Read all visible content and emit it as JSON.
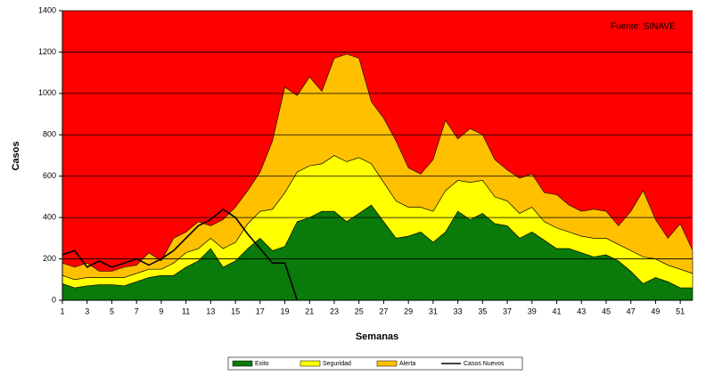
{
  "chart_data": {
    "type": "stacked_area_line",
    "ylabel": "Casos",
    "xlabel": "Semanas",
    "annotation": "Fuente: SINAVE",
    "plot_background": "#ff0000",
    "x": [
      1,
      2,
      3,
      4,
      5,
      6,
      7,
      8,
      9,
      10,
      11,
      12,
      13,
      14,
      15,
      16,
      17,
      18,
      19,
      20,
      21,
      22,
      23,
      24,
      25,
      26,
      27,
      28,
      29,
      30,
      31,
      32,
      33,
      34,
      35,
      36,
      37,
      38,
      39,
      40,
      41,
      42,
      43,
      44,
      45,
      46,
      47,
      48,
      49,
      50,
      51,
      52
    ],
    "xlim": [
      1,
      52
    ],
    "xticks": [
      1,
      3,
      5,
      7,
      9,
      11,
      13,
      15,
      17,
      19,
      21,
      23,
      25,
      27,
      29,
      31,
      33,
      35,
      37,
      39,
      41,
      43,
      45,
      47,
      49,
      51
    ],
    "ylim": [
      0,
      1400
    ],
    "yticks": [
      0,
      200,
      400,
      600,
      800,
      1000,
      1200,
      1400
    ],
    "grid": true,
    "series": [
      {
        "name": "Exito",
        "color": "#0a7a0a",
        "kind": "area",
        "values": [
          80,
          60,
          70,
          75,
          75,
          70,
          90,
          110,
          120,
          120,
          160,
          190,
          250,
          160,
          190,
          250,
          300,
          240,
          260,
          380,
          400,
          430,
          430,
          380,
          420,
          460,
          380,
          300,
          310,
          330,
          280,
          330,
          430,
          390,
          420,
          370,
          360,
          300,
          330,
          290,
          250,
          250,
          230,
          210,
          220,
          190,
          140,
          80,
          110,
          90,
          60,
          60
        ]
      },
      {
        "name": "Seguridad",
        "color": "#ffff00",
        "kind": "area",
        "values": [
          40,
          40,
          40,
          35,
          35,
          40,
          40,
          40,
          30,
          60,
          70,
          60,
          50,
          90,
          90,
          120,
          130,
          200,
          260,
          240,
          250,
          230,
          270,
          290,
          270,
          200,
          190,
          180,
          140,
          120,
          150,
          200,
          150,
          180,
          160,
          130,
          120,
          120,
          120,
          90,
          100,
          80,
          80,
          90,
          80,
          80,
          100,
          130,
          90,
          80,
          90,
          70
        ]
      },
      {
        "name": "Alerta",
        "color": "#ffc000",
        "kind": "area",
        "values": [
          60,
          60,
          70,
          30,
          30,
          50,
          40,
          80,
          40,
          120,
          100,
          130,
          60,
          140,
          170,
          160,
          190,
          330,
          510,
          370,
          430,
          350,
          470,
          520,
          480,
          300,
          310,
          290,
          190,
          160,
          250,
          340,
          200,
          260,
          220,
          180,
          150,
          170,
          160,
          140,
          160,
          130,
          120,
          140,
          130,
          90,
          190,
          320,
          190,
          130,
          220,
          110
        ]
      },
      {
        "name": "Casos Nuevos",
        "color": "#000000",
        "kind": "line",
        "values": [
          220,
          240,
          160,
          190,
          160,
          180,
          200,
          170,
          200,
          240,
          300,
          360,
          390,
          440,
          400,
          320,
          250,
          180,
          180,
          0,
          null,
          null,
          null,
          null,
          null,
          null,
          null,
          null,
          null,
          null,
          null,
          null,
          null,
          null,
          null,
          null,
          null,
          null,
          null,
          null,
          null,
          null,
          null,
          null,
          null,
          null,
          null,
          null,
          null,
          null,
          null,
          null
        ]
      }
    ]
  }
}
